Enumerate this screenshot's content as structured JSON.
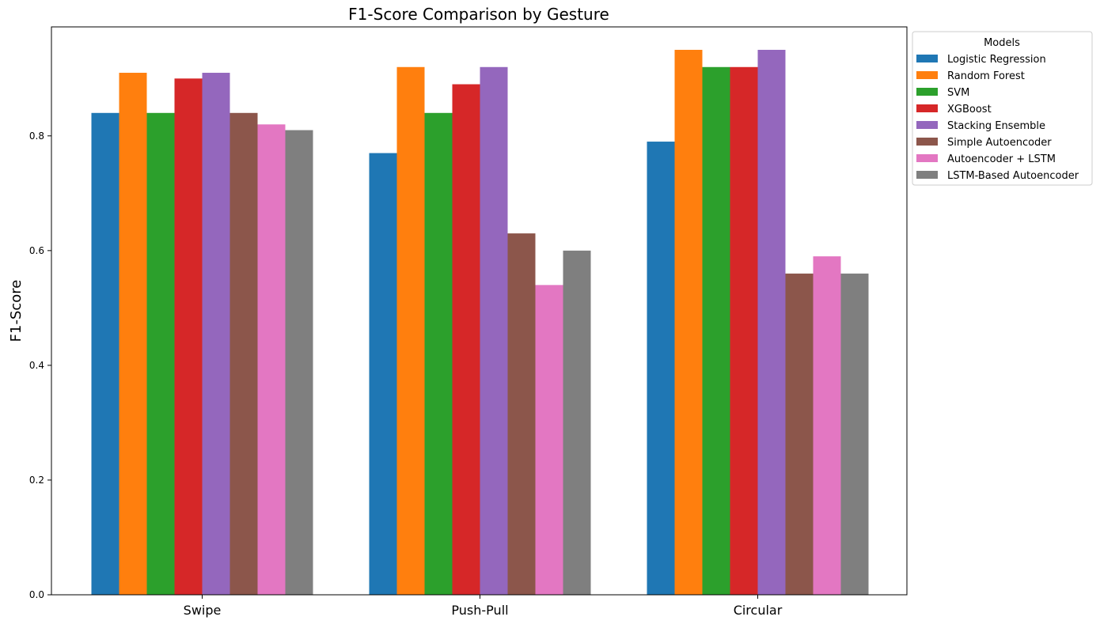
{
  "chart_data": {
    "type": "bar",
    "title": "F1-Score Comparison by Gesture",
    "xlabel": "",
    "ylabel": "F1-Score",
    "ylim": [
      0,
      0.99
    ],
    "yticks": [
      0.0,
      0.2,
      0.4,
      0.6,
      0.8
    ],
    "ytick_labels": [
      "0.0",
      "0.2",
      "0.4",
      "0.6",
      "0.8"
    ],
    "grid": false,
    "categories": [
      "Swipe",
      "Push-Pull",
      "Circular"
    ],
    "legend": {
      "title": "Models",
      "placement": "outside-top-right"
    },
    "series": [
      {
        "name": "Logistic Regression",
        "color": "#1f77b4",
        "values": [
          0.84,
          0.77,
          0.79
        ]
      },
      {
        "name": "Random Forest",
        "color": "#ff7f0e",
        "values": [
          0.91,
          0.92,
          0.95
        ]
      },
      {
        "name": "SVM",
        "color": "#2ca02c",
        "values": [
          0.84,
          0.84,
          0.92
        ]
      },
      {
        "name": "XGBoost",
        "color": "#d62728",
        "values": [
          0.9,
          0.89,
          0.92
        ]
      },
      {
        "name": "Stacking Ensemble",
        "color": "#9467bd",
        "values": [
          0.91,
          0.92,
          0.95
        ]
      },
      {
        "name": "Simple Autoencoder",
        "color": "#8c564b",
        "values": [
          0.84,
          0.63,
          0.56
        ]
      },
      {
        "name": "Autoencoder + LSTM",
        "color": "#e377c2",
        "values": [
          0.82,
          0.54,
          0.59
        ]
      },
      {
        "name": "LSTM-Based Autoencoder",
        "color": "#7f7f7f",
        "values": [
          0.81,
          0.6,
          0.56
        ]
      }
    ]
  }
}
